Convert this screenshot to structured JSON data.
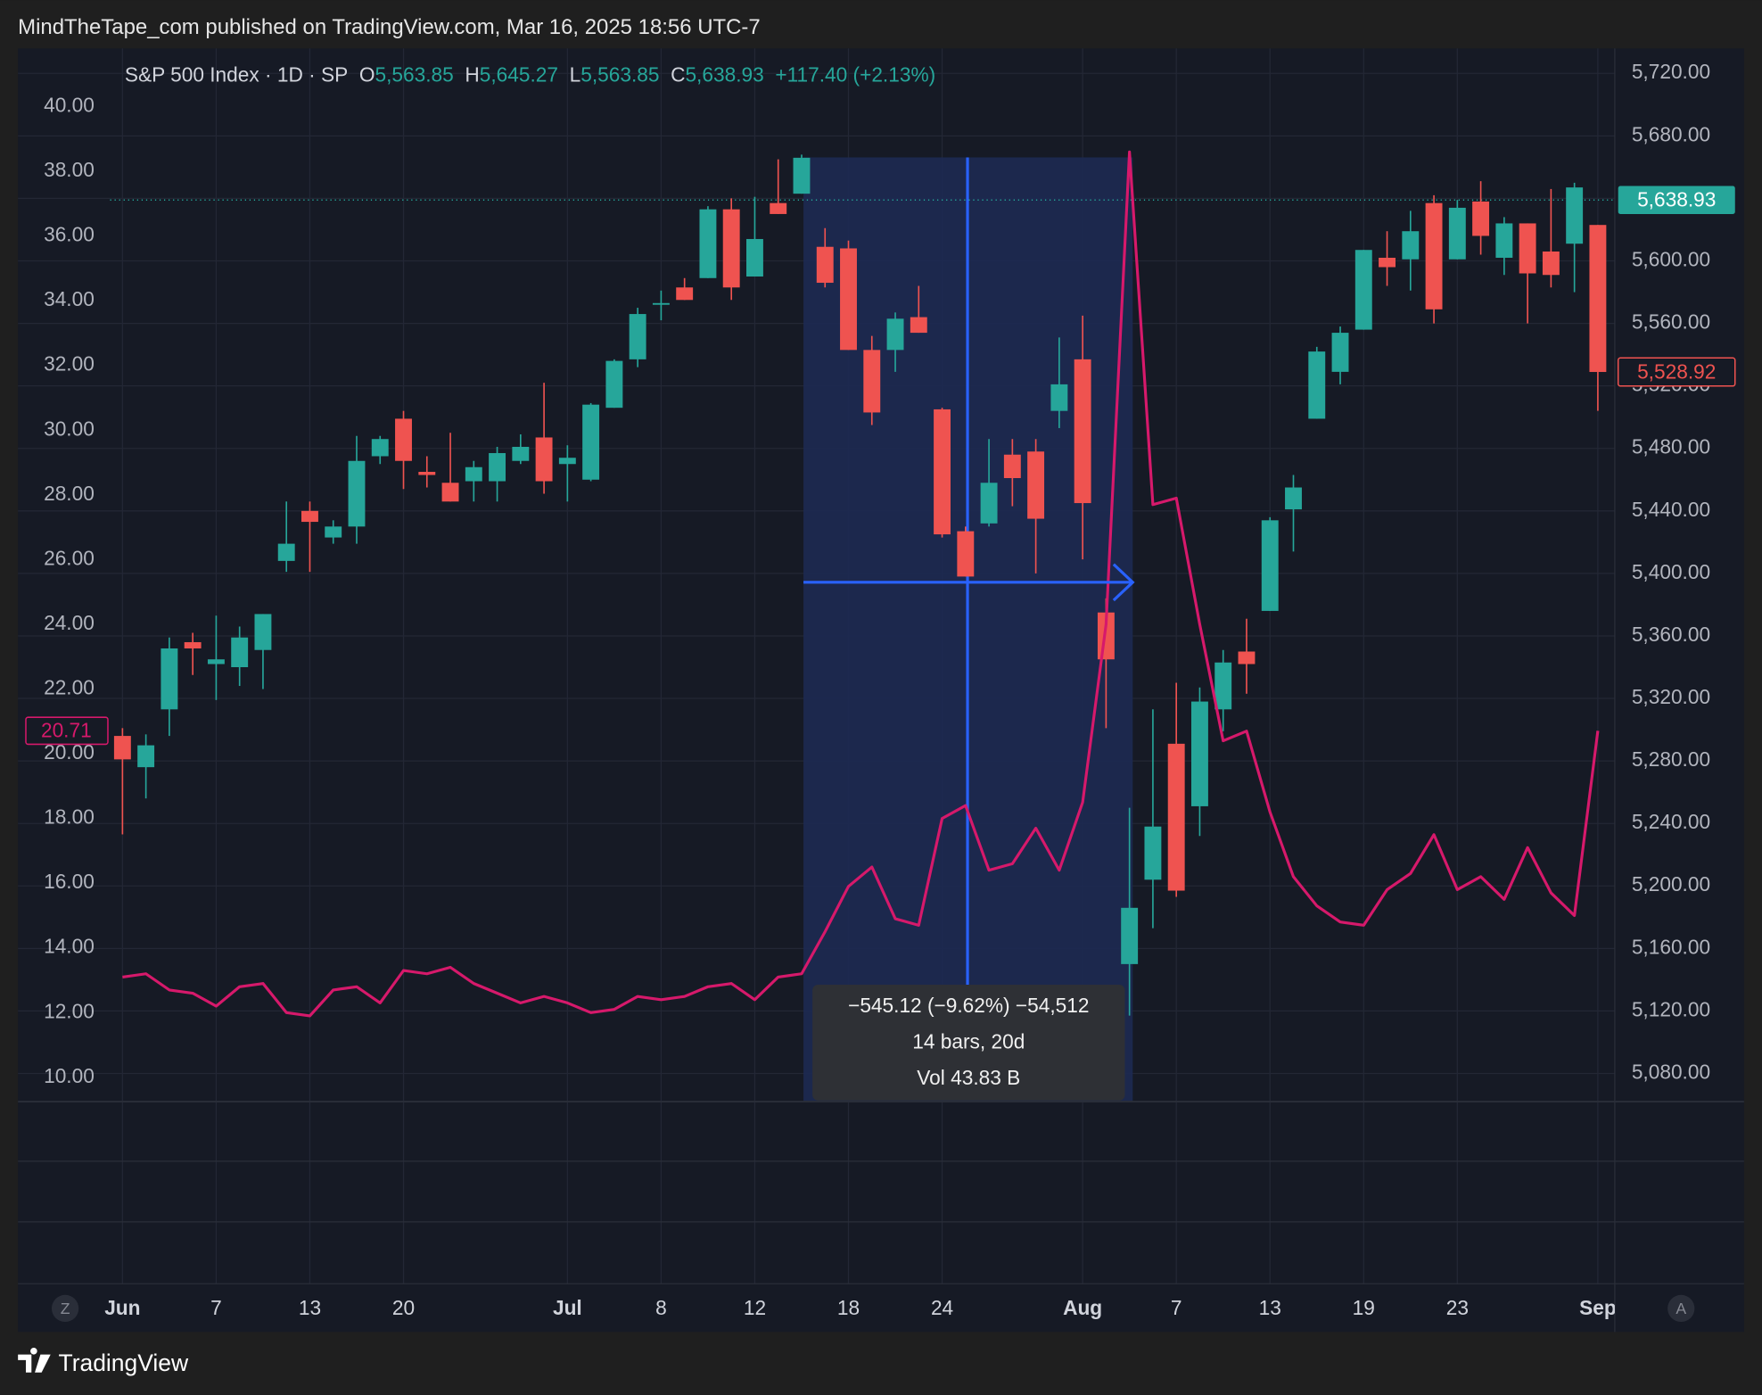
{
  "header": {
    "publisher": "MindTheTape_com published on TradingView.com, Mar 16, 2025 18:56 UTC-7",
    "brand": "TradingView",
    "controls": [
      "Z",
      "A"
    ]
  },
  "chart_data": {
    "type": "candlestick",
    "title": "S&P 500 Index · 1D · SP",
    "ohlc_legend": {
      "letters": [
        "O",
        "H",
        "L",
        "C"
      ],
      "values": [
        5563.85,
        5645.27,
        5563.85,
        5638.93
      ],
      "value_labels": [
        "5,563.85",
        "5,645.27",
        "5,563.85",
        "5,638.93"
      ],
      "change": "+117.40 (+2.13%)"
    },
    "categories": [
      "Jun",
      null,
      null,
      null,
      "7",
      null,
      null,
      null,
      "13",
      null,
      null,
      null,
      "20",
      null,
      null,
      null,
      null,
      null,
      null,
      "Jul",
      null,
      null,
      null,
      "8",
      null,
      null,
      null,
      "12",
      null,
      null,
      null,
      "18",
      null,
      null,
      null,
      "24",
      null,
      null,
      null,
      null,
      null,
      "Aug",
      null,
      null,
      null,
      "7",
      null,
      null,
      null,
      "13",
      null,
      null,
      null,
      "19",
      null,
      null,
      null,
      "23",
      null,
      null,
      null,
      null,
      null,
      "Sep"
    ],
    "open": [
      5296,
      5276,
      5313,
      5356,
      5342,
      5340,
      5351,
      5408,
      5440,
      5423,
      5430,
      5475,
      5499,
      5465,
      5458,
      5459,
      5459,
      5472,
      5487,
      5470,
      5460,
      5506,
      5537,
      5572,
      5583,
      5589,
      5633,
      5590,
      5637,
      5643,
      5609,
      5608,
      5543,
      5543,
      5564,
      5505,
      5427,
      5432,
      5476,
      5478,
      5504,
      5537,
      5375,
      5150,
      5204,
      5291,
      5251,
      5313,
      5350,
      5376,
      5441,
      5499,
      5529,
      5556,
      5602,
      5601,
      5637,
      5601,
      5638,
      5602,
      5624,
      5606,
      5611,
      5623
    ],
    "high": [
      5301,
      5297,
      5359,
      5362,
      5373,
      5366,
      5374,
      5446,
      5446,
      5434,
      5488,
      5488,
      5504,
      5475,
      5490,
      5472,
      5481,
      5489,
      5522,
      5482,
      5509,
      5537,
      5570,
      5581,
      5589,
      5635,
      5640,
      5641,
      5665,
      5668,
      5621,
      5613,
      5552,
      5567,
      5584,
      5506,
      5430,
      5486,
      5486,
      5486,
      5551,
      5565,
      5384,
      5250,
      5313,
      5330,
      5327,
      5351,
      5371,
      5436,
      5463,
      5545,
      5558,
      5607,
      5619,
      5632,
      5642,
      5639,
      5651,
      5628,
      5624,
      5646,
      5650,
      5623
    ],
    "low": [
      5233,
      5256,
      5296,
      5335,
      5319,
      5328,
      5326,
      5401,
      5401,
      5419,
      5419,
      5470,
      5454,
      5455,
      5446,
      5446,
      5446,
      5470,
      5451,
      5446,
      5459,
      5506,
      5532,
      5562,
      5575,
      5589,
      5575,
      5590,
      5630,
      5643,
      5583,
      5543,
      5495,
      5529,
      5554,
      5423,
      5398,
      5430,
      5443,
      5400,
      5493,
      5409,
      5301,
      5117,
      5173,
      5193,
      5232,
      5299,
      5323,
      5376,
      5414,
      5499,
      5521,
      5556,
      5584,
      5581,
      5560,
      5601,
      5604,
      5591,
      5560,
      5583,
      5580,
      5504
    ],
    "close": [
      5281,
      5290,
      5352,
      5352,
      5345,
      5359,
      5374,
      5419,
      5433,
      5430,
      5472,
      5486,
      5472,
      5463,
      5446,
      5468,
      5477,
      5481,
      5459,
      5474,
      5508,
      5536,
      5566,
      5573,
      5575,
      5633,
      5583,
      5614,
      5630,
      5666,
      5586,
      5543,
      5503,
      5563,
      5554,
      5425,
      5398,
      5458,
      5461,
      5435,
      5521,
      5445,
      5345,
      5186,
      5238,
      5197,
      5318,
      5343,
      5342,
      5434,
      5455,
      5542,
      5554,
      5607,
      5596,
      5619,
      5569,
      5634,
      5616,
      5624,
      5592,
      5591,
      5647,
      5528.92
    ],
    "up_color": "#26a69a",
    "down_color": "#ef5350",
    "last_label": "5,528.92",
    "marker_price": {
      "value": 5638.93,
      "label": "5,638.93"
    },
    "series": [
      {
        "color": "#d6196b",
        "axis": "y2",
        "last_label": "20.71",
        "values": [
          13.1,
          13.2,
          12.7,
          12.6,
          12.2,
          12.8,
          12.9,
          12.0,
          11.9,
          12.7,
          12.8,
          12.3,
          13.3,
          13.2,
          13.4,
          12.9,
          12.6,
          12.3,
          12.5,
          12.3,
          12.0,
          12.1,
          12.5,
          12.4,
          12.5,
          12.8,
          12.9,
          12.4,
          13.1,
          13.2,
          14.5,
          15.9,
          16.5,
          14.9,
          14.7,
          18.0,
          18.4,
          16.4,
          16.6,
          17.7,
          16.4,
          18.5,
          24.0,
          38.6,
          27.7,
          27.9,
          24.0,
          20.4,
          20.7,
          18.2,
          16.2,
          15.3,
          14.8,
          14.7,
          15.8,
          16.3,
          17.5,
          15.8,
          16.2,
          15.5,
          17.1,
          15.7,
          15.0,
          20.71
        ]
      }
    ],
    "ylim": [
      5062,
      5736
    ],
    "yticks": [
      {
        "value": 5080,
        "label": "5,080.00"
      },
      {
        "value": 5120,
        "label": "5,120.00"
      },
      {
        "value": 5160,
        "label": "5,160.00"
      },
      {
        "value": 5200,
        "label": "5,200.00"
      },
      {
        "value": 5240,
        "label": "5,240.00"
      },
      {
        "value": 5280,
        "label": "5,280.00"
      },
      {
        "value": 5320,
        "label": "5,320.00"
      },
      {
        "value": 5360,
        "label": "5,360.00"
      },
      {
        "value": 5400,
        "label": "5,400.00"
      },
      {
        "value": 5440,
        "label": "5,440.00"
      },
      {
        "value": 5480,
        "label": "5,480.00"
      },
      {
        "value": 5520,
        "label": "5,520.00"
      },
      {
        "value": 5560,
        "label": "5,560.00"
      },
      {
        "value": 5600,
        "label": "5,600.00"
      },
      {
        "value": 5640,
        "label": "5,640.00"
      },
      {
        "value": 5680,
        "label": "5,680.00"
      },
      {
        "value": 5720,
        "label": "5,720.00"
      }
    ],
    "y2lim": [
      9.25,
      41.8
    ],
    "y2ticks": [
      {
        "value": 10,
        "label": "10.00"
      },
      {
        "value": 12,
        "label": "12.00"
      },
      {
        "value": 14,
        "label": "14.00"
      },
      {
        "value": 16,
        "label": "16.00"
      },
      {
        "value": 18,
        "label": "18.00"
      },
      {
        "value": 20,
        "label": "20.00"
      },
      {
        "value": 22,
        "label": "22.00"
      },
      {
        "value": 24,
        "label": "24.00"
      },
      {
        "value": 26,
        "label": "26.00"
      },
      {
        "value": 28,
        "label": "28.00"
      },
      {
        "value": 30,
        "label": "30.00"
      },
      {
        "value": 32,
        "label": "32.00"
      },
      {
        "value": 34,
        "label": "34.00"
      },
      {
        "value": 36,
        "label": "36.00"
      },
      {
        "value": 38,
        "label": "38.00"
      },
      {
        "value": 40,
        "label": "40.00"
      }
    ],
    "grid": true,
    "measure": {
      "lines": [
        "−545.12 (−9.62%) −54,512",
        "14 bars, 20d",
        "Vol 43.83 B"
      ]
    }
  }
}
